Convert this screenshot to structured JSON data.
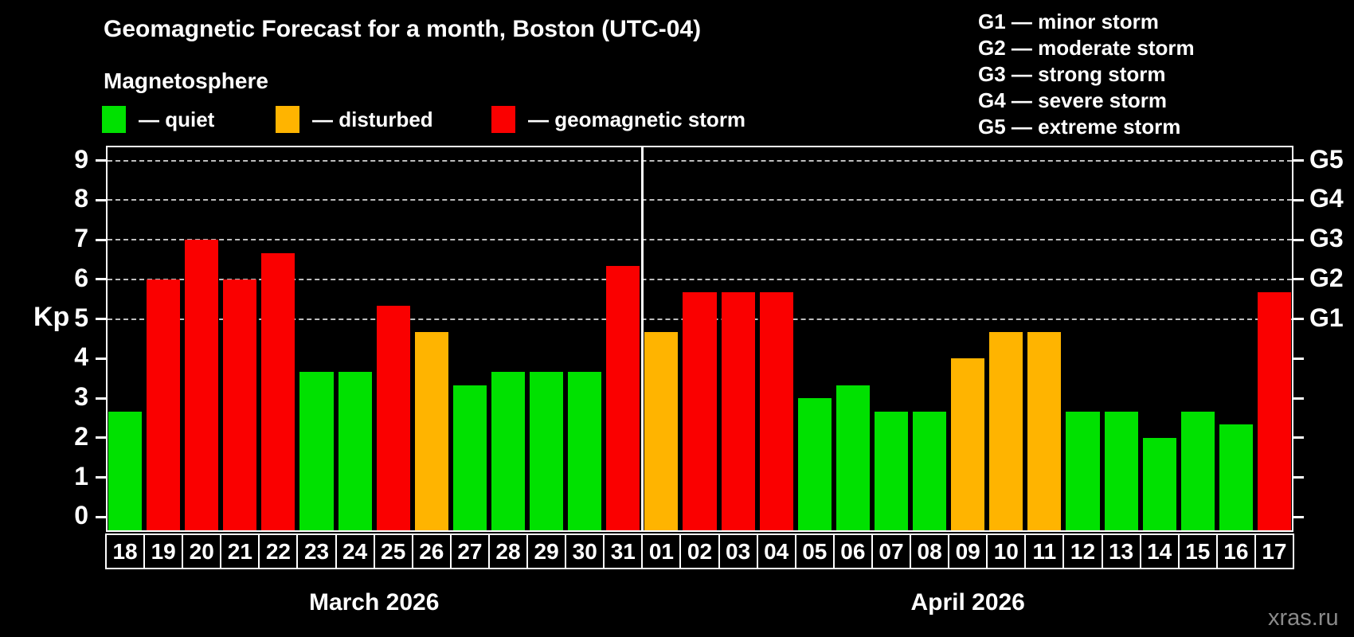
{
  "title": "Geomagnetic Forecast for a month, Boston (UTC-04)",
  "subtitle": "Magnetosphere",
  "legend": {
    "items": [
      {
        "name": "quiet",
        "label": "— quiet",
        "color": "#00e100"
      },
      {
        "name": "disturbed",
        "label": "— disturbed",
        "color": "#ffb400"
      },
      {
        "name": "storm",
        "label": "— geomagnetic storm",
        "color": "#fa0000"
      }
    ]
  },
  "g_levels": [
    "G1 — minor storm",
    "G2 — moderate storm",
    "G3 — strong storm",
    "G4 — severe storm",
    "G5 — extreme storm"
  ],
  "watermark": "xras.ru",
  "chart_data": {
    "type": "bar",
    "ylabel": "Kp",
    "ylim": [
      0,
      9
    ],
    "yticks": [
      0,
      1,
      2,
      3,
      4,
      5,
      6,
      7,
      8,
      9
    ],
    "gridlines_at": [
      5,
      6,
      7,
      8,
      9
    ],
    "grid": "dashed-horizontal",
    "legend_position": "top",
    "right_axis": [
      {
        "kp": 5,
        "label": "G1"
      },
      {
        "kp": 6,
        "label": "G2"
      },
      {
        "kp": 7,
        "label": "G3"
      },
      {
        "kp": 8,
        "label": "G4"
      },
      {
        "kp": 9,
        "label": "G5"
      }
    ],
    "level_colors": {
      "quiet": "#00e100",
      "disturbed": "#ffb400",
      "storm": "#fa0000"
    },
    "months": [
      {
        "label": "March 2026",
        "days": [
          {
            "day": "18",
            "kp": 2.67,
            "level": "quiet"
          },
          {
            "day": "19",
            "kp": 6.0,
            "level": "storm"
          },
          {
            "day": "20",
            "kp": 7.0,
            "level": "storm"
          },
          {
            "day": "21",
            "kp": 6.0,
            "level": "storm"
          },
          {
            "day": "22",
            "kp": 6.67,
            "level": "storm"
          },
          {
            "day": "23",
            "kp": 3.67,
            "level": "quiet"
          },
          {
            "day": "24",
            "kp": 3.67,
            "level": "quiet"
          },
          {
            "day": "25",
            "kp": 5.33,
            "level": "storm"
          },
          {
            "day": "26",
            "kp": 4.67,
            "level": "disturbed"
          },
          {
            "day": "27",
            "kp": 3.33,
            "level": "quiet"
          },
          {
            "day": "28",
            "kp": 3.67,
            "level": "quiet"
          },
          {
            "day": "29",
            "kp": 3.67,
            "level": "quiet"
          },
          {
            "day": "30",
            "kp": 3.67,
            "level": "quiet"
          },
          {
            "day": "31",
            "kp": 6.33,
            "level": "storm"
          }
        ]
      },
      {
        "label": "April 2026",
        "days": [
          {
            "day": "01",
            "kp": 4.67,
            "level": "disturbed"
          },
          {
            "day": "02",
            "kp": 5.67,
            "level": "storm"
          },
          {
            "day": "03",
            "kp": 5.67,
            "level": "storm"
          },
          {
            "day": "04",
            "kp": 5.67,
            "level": "storm"
          },
          {
            "day": "05",
            "kp": 3.0,
            "level": "quiet"
          },
          {
            "day": "06",
            "kp": 3.33,
            "level": "quiet"
          },
          {
            "day": "07",
            "kp": 2.67,
            "level": "quiet"
          },
          {
            "day": "08",
            "kp": 2.67,
            "level": "quiet"
          },
          {
            "day": "09",
            "kp": 4.0,
            "level": "disturbed"
          },
          {
            "day": "10",
            "kp": 4.67,
            "level": "disturbed"
          },
          {
            "day": "11",
            "kp": 4.67,
            "level": "disturbed"
          },
          {
            "day": "12",
            "kp": 2.67,
            "level": "quiet"
          },
          {
            "day": "13",
            "kp": 2.67,
            "level": "quiet"
          },
          {
            "day": "14",
            "kp": 2.0,
            "level": "quiet"
          },
          {
            "day": "15",
            "kp": 2.67,
            "level": "quiet"
          },
          {
            "day": "16",
            "kp": 2.33,
            "level": "quiet"
          },
          {
            "day": "17",
            "kp": 5.67,
            "level": "storm"
          }
        ]
      }
    ]
  }
}
